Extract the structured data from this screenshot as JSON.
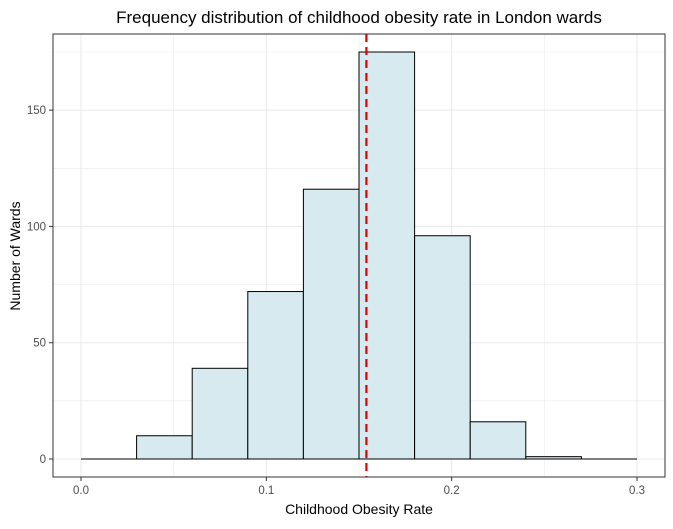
{
  "chart_data": {
    "type": "bar",
    "subtype": "histogram",
    "title": "Frequency distribution of childhood obesity rate in London wards",
    "xlabel": "Childhood Obesity Rate",
    "ylabel": "Number of Wards",
    "xlim": [
      0.0,
      0.3
    ],
    "ylim": [
      0,
      175
    ],
    "x_ticks": [
      "0.0",
      "0.1",
      "0.2",
      "0.3"
    ],
    "x_tick_values": [
      0.0,
      0.1,
      0.2,
      0.3
    ],
    "y_ticks": [
      "0",
      "50",
      "100",
      "150"
    ],
    "y_tick_values": [
      0,
      50,
      100,
      150
    ],
    "bin_width": 0.03,
    "bins": [
      {
        "x0": 0.0,
        "x1": 0.03,
        "count": 0
      },
      {
        "x0": 0.03,
        "x1": 0.06,
        "count": 10
      },
      {
        "x0": 0.06,
        "x1": 0.09,
        "count": 39
      },
      {
        "x0": 0.09,
        "x1": 0.12,
        "count": 72
      },
      {
        "x0": 0.12,
        "x1": 0.15,
        "count": 116
      },
      {
        "x0": 0.15,
        "x1": 0.18,
        "count": 175
      },
      {
        "x0": 0.18,
        "x1": 0.21,
        "count": 96
      },
      {
        "x0": 0.21,
        "x1": 0.24,
        "count": 16
      },
      {
        "x0": 0.24,
        "x1": 0.27,
        "count": 1
      },
      {
        "x0": 0.27,
        "x1": 0.3,
        "count": 0
      }
    ],
    "reference_line": {
      "x": 0.154,
      "style": "dashed",
      "color": "#e00000"
    },
    "grid": true,
    "bar_fill": "#d6eaf0",
    "bar_stroke": "#000000",
    "grid_color": "#ebebeb",
    "panel_border": "#333333"
  }
}
